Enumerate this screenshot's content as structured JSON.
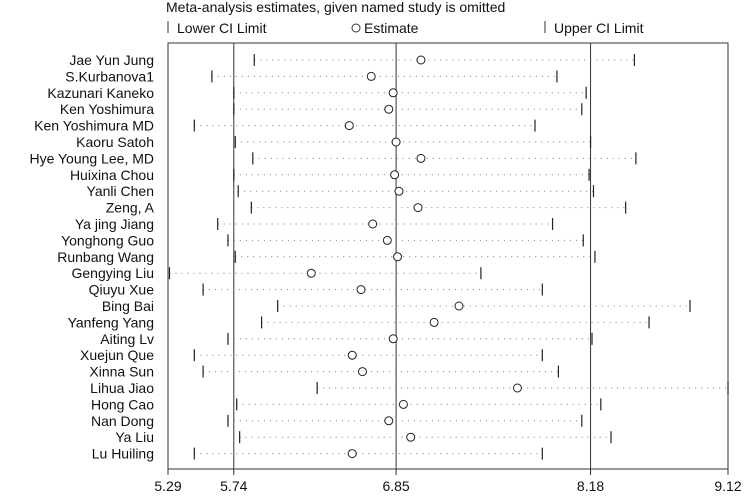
{
  "chart_data": {
    "type": "forest-sensitivity",
    "title": "Meta-analysis estimates, given named study is omitted",
    "legend": {
      "placement": "top",
      "lower_label": "Lower CI Limit",
      "estimate_label": "Estimate",
      "upper_label": "Upper CI Limit"
    },
    "x_ticks": [
      "5.29",
      "5.74",
      "6.85",
      "8.18",
      "9.12"
    ],
    "x_tick_values": [
      5.29,
      5.74,
      6.85,
      8.18,
      9.12
    ],
    "xlim": [
      5.29,
      9.12
    ],
    "reference_lines": [
      5.74,
      6.85,
      8.18
    ],
    "studies": [
      {
        "name": "Jae Yun Jung",
        "lower": 5.88,
        "estimate": 7.02,
        "upper": 8.48
      },
      {
        "name": "S.Kurbanova1",
        "lower": 5.59,
        "estimate": 6.68,
        "upper": 7.95
      },
      {
        "name": "Kazunari Kaneko",
        "lower": 5.74,
        "estimate": 6.83,
        "upper": 8.15
      },
      {
        "name": "Ken Yoshimura",
        "lower": 5.74,
        "estimate": 6.8,
        "upper": 8.12
      },
      {
        "name": "Ken Yoshimura MD",
        "lower": 5.47,
        "estimate": 6.53,
        "upper": 7.8
      },
      {
        "name": "Kaoru Satoh",
        "lower": 5.75,
        "estimate": 6.85,
        "upper": 8.18
      },
      {
        "name": "Hye Young Lee, MD",
        "lower": 5.87,
        "estimate": 7.02,
        "upper": 8.49
      },
      {
        "name": "Huixina Chou",
        "lower": 5.74,
        "estimate": 6.84,
        "upper": 8.17
      },
      {
        "name": "Yanli Chen",
        "lower": 5.77,
        "estimate": 6.87,
        "upper": 8.2
      },
      {
        "name": "Zeng, A",
        "lower": 5.86,
        "estimate": 7.0,
        "upper": 8.42
      },
      {
        "name": "Ya jing Jiang",
        "lower": 5.63,
        "estimate": 6.69,
        "upper": 7.92
      },
      {
        "name": "Yonghong Guo",
        "lower": 5.7,
        "estimate": 6.79,
        "upper": 8.13
      },
      {
        "name": "Runbang Wang",
        "lower": 5.75,
        "estimate": 6.86,
        "upper": 8.21
      },
      {
        "name": "Gengying Liu",
        "lower": 5.3,
        "estimate": 6.27,
        "upper": 7.43
      },
      {
        "name": "Qiuyu Xue",
        "lower": 5.53,
        "estimate": 6.61,
        "upper": 7.85
      },
      {
        "name": "Bing Bai",
        "lower": 6.04,
        "estimate": 7.28,
        "upper": 8.86
      },
      {
        "name": "Yanfeng Yang",
        "lower": 5.93,
        "estimate": 7.11,
        "upper": 8.58
      },
      {
        "name": "Aiting Lv",
        "lower": 5.7,
        "estimate": 6.83,
        "upper": 8.19
      },
      {
        "name": "Xuejun Que",
        "lower": 5.47,
        "estimate": 6.55,
        "upper": 7.85
      },
      {
        "name": "Xinna Sun",
        "lower": 5.53,
        "estimate": 6.62,
        "upper": 7.96
      },
      {
        "name": "Lihua Jiao",
        "lower": 6.31,
        "estimate": 7.68,
        "upper": 9.12
      },
      {
        "name": "Hong Cao",
        "lower": 5.76,
        "estimate": 6.9,
        "upper": 8.25
      },
      {
        "name": "Nan Dong",
        "lower": 5.7,
        "estimate": 6.8,
        "upper": 8.12
      },
      {
        "name": "Ya Liu",
        "lower": 5.78,
        "estimate": 6.95,
        "upper": 8.32
      },
      {
        "name": "Lu Huiling",
        "lower": 5.47,
        "estimate": 6.55,
        "upper": 7.85
      }
    ]
  }
}
